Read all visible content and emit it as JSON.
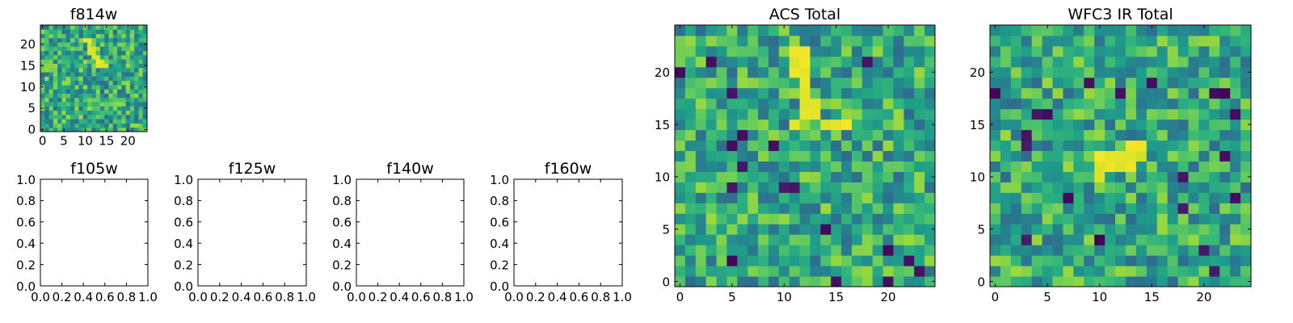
{
  "chart_data": [
    {
      "type": "heatmap",
      "title": "f814w",
      "grid_size": 25,
      "x_ticks": [
        0,
        5,
        10,
        15,
        20
      ],
      "y_ticks": [
        0,
        5,
        10,
        15,
        20
      ],
      "xlim": [
        -0.5,
        24.5
      ],
      "ylim": [
        -0.5,
        24.5
      ],
      "colormap": "viridis",
      "pattern": "noise with a bright diagonal streak near x=10-14, y=13-22",
      "bright_pixels": [
        [
          10,
          21
        ],
        [
          11,
          21
        ],
        [
          11,
          20
        ],
        [
          11,
          19
        ],
        [
          12,
          19
        ],
        [
          12,
          18
        ],
        [
          11,
          18
        ],
        [
          12,
          17
        ],
        [
          13,
          17
        ],
        [
          13,
          16
        ],
        [
          14,
          16
        ],
        [
          13,
          15
        ],
        [
          14,
          15
        ],
        [
          15,
          15
        ]
      ]
    },
    {
      "type": "heatmap",
      "title": "ACS Total",
      "grid_size": 25,
      "x_ticks": [
        0,
        5,
        10,
        15,
        20
      ],
      "y_ticks": [
        0,
        5,
        10,
        15,
        20
      ],
      "xlim": [
        -0.5,
        24.5
      ],
      "ylim": [
        -0.5,
        24.5
      ],
      "colormap": "viridis",
      "bright_pixels": [
        [
          11,
          22
        ],
        [
          12,
          22
        ],
        [
          11,
          21
        ],
        [
          12,
          21
        ],
        [
          11,
          20
        ],
        [
          12,
          20
        ],
        [
          12,
          19
        ],
        [
          12,
          18
        ],
        [
          12,
          17
        ],
        [
          13,
          17
        ],
        [
          12,
          16
        ],
        [
          13,
          16
        ],
        [
          14,
          15
        ],
        [
          15,
          15
        ],
        [
          16,
          15
        ],
        [
          11,
          15
        ]
      ],
      "dark_pixels": [
        [
          0,
          20
        ],
        [
          3,
          21
        ],
        [
          6,
          14
        ],
        [
          5,
          18
        ],
        [
          5,
          13
        ],
        [
          6,
          11
        ],
        [
          9,
          13
        ],
        [
          10,
          9
        ],
        [
          5,
          9
        ],
        [
          11,
          9
        ],
        [
          14,
          5
        ],
        [
          20,
          3
        ],
        [
          22,
          2
        ],
        [
          23,
          1
        ],
        [
          20,
          0
        ],
        [
          15,
          0
        ],
        [
          18,
          21
        ],
        [
          5,
          2
        ]
      ]
    },
    {
      "type": "heatmap",
      "title": "WFC3 IR Total",
      "grid_size": 25,
      "x_ticks": [
        0,
        5,
        10,
        15,
        20
      ],
      "y_ticks": [
        0,
        5,
        10,
        15,
        20
      ],
      "xlim": [
        -0.5,
        24.5
      ],
      "ylim": [
        -0.5,
        24.5
      ],
      "colormap": "viridis",
      "bright_pixels": [
        [
          10,
          12
        ],
        [
          11,
          12
        ],
        [
          12,
          12
        ],
        [
          13,
          12
        ],
        [
          14,
          12
        ],
        [
          10,
          11
        ],
        [
          11,
          11
        ],
        [
          12,
          11
        ],
        [
          13,
          11
        ],
        [
          10,
          10
        ],
        [
          14,
          13
        ],
        [
          13,
          13
        ]
      ],
      "dark_pixels": [
        [
          3,
          14
        ],
        [
          3,
          13
        ],
        [
          4,
          16
        ],
        [
          9,
          19
        ],
        [
          12,
          18
        ],
        [
          15,
          19
        ],
        [
          21,
          18
        ],
        [
          22,
          18
        ],
        [
          0,
          18
        ],
        [
          23,
          16
        ],
        [
          22,
          12
        ],
        [
          3,
          4
        ],
        [
          10,
          4
        ],
        [
          20,
          3
        ],
        [
          23,
          8
        ],
        [
          18,
          10
        ],
        [
          18,
          7
        ],
        [
          5,
          16
        ],
        [
          21,
          1
        ],
        [
          7,
          8
        ]
      ]
    },
    {
      "type": "scatter",
      "title": "f105w",
      "xlim": [
        0,
        1
      ],
      "ylim": [
        0,
        1
      ],
      "x_ticks": [
        "0.0",
        "0.2",
        "0.4",
        "0.6",
        "0.8",
        "1.0"
      ],
      "y_ticks": [
        "0.0",
        "0.2",
        "0.4",
        "0.6",
        "0.8",
        "1.0"
      ],
      "series": []
    },
    {
      "type": "scatter",
      "title": "f125w",
      "xlim": [
        0,
        1
      ],
      "ylim": [
        0,
        1
      ],
      "x_ticks": [
        "0.0",
        "0.2",
        "0.4",
        "0.6",
        "0.8",
        "1.0"
      ],
      "y_ticks": [
        "0.0",
        "0.2",
        "0.4",
        "0.6",
        "0.8",
        "1.0"
      ],
      "series": []
    },
    {
      "type": "scatter",
      "title": "f140w",
      "xlim": [
        0,
        1
      ],
      "ylim": [
        0,
        1
      ],
      "x_ticks": [
        "0.0",
        "0.2",
        "0.4",
        "0.6",
        "0.8",
        "1.0"
      ],
      "y_ticks": [
        "0.0",
        "0.2",
        "0.4",
        "0.6",
        "0.8",
        "1.0"
      ],
      "series": []
    },
    {
      "type": "scatter",
      "title": "f160w",
      "xlim": [
        0,
        1
      ],
      "ylim": [
        0,
        1
      ],
      "x_ticks": [
        "0.0",
        "0.2",
        "0.4",
        "0.6",
        "0.8",
        "1.0"
      ],
      "y_ticks": [
        "0.0",
        "0.2",
        "0.4",
        "0.6",
        "0.8",
        "1.0"
      ],
      "series": []
    }
  ]
}
